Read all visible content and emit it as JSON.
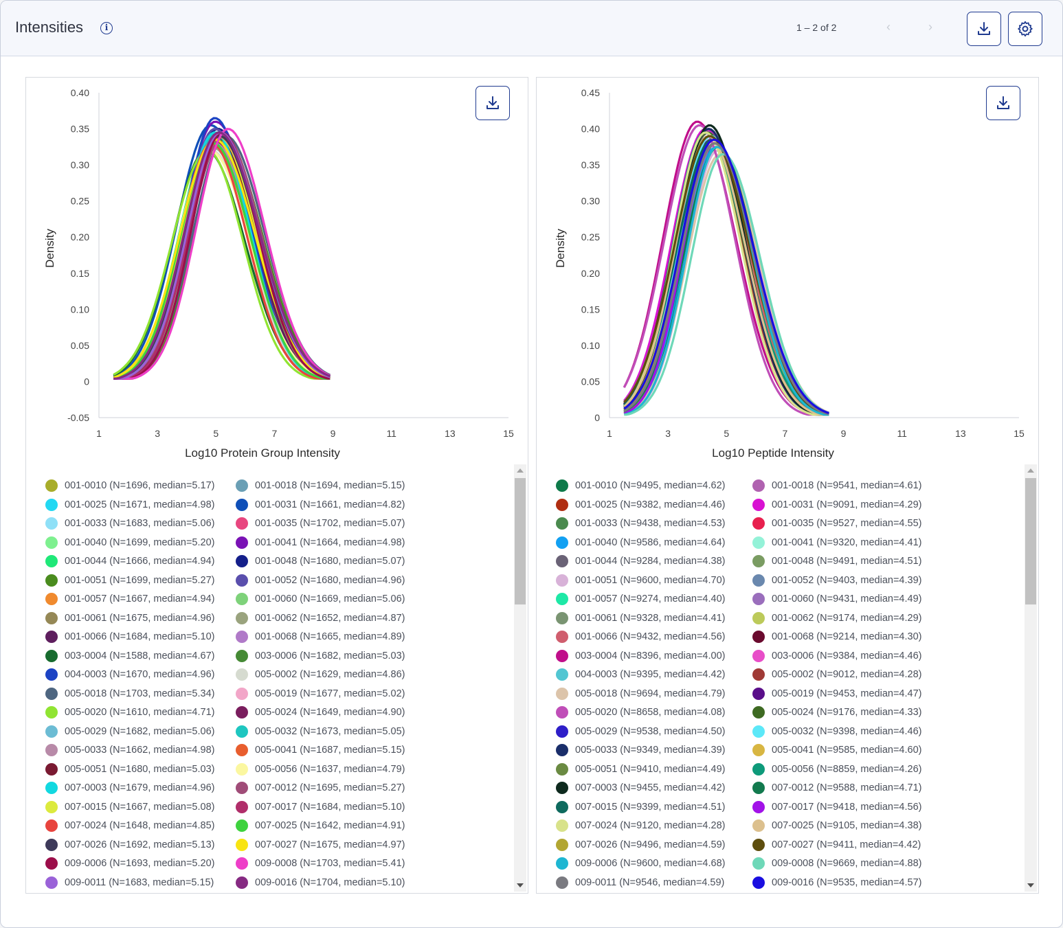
{
  "header": {
    "title": "Intensities",
    "pager": "1 – 2 of 2"
  },
  "chart_data": [
    {
      "type": "line",
      "xlabel": "Log10 Protein Group Intensity",
      "ylabel": "Density",
      "xlim": [
        1,
        15
      ],
      "ylim": [
        -0.05,
        0.4
      ],
      "xticks": [
        1,
        3,
        5,
        7,
        9,
        11,
        13,
        15
      ],
      "yticks": [
        -0.05,
        0,
        0.05,
        0.1,
        0.15,
        0.2,
        0.25,
        0.3,
        0.35,
        0.4
      ],
      "ytick_labels": [
        "-0.05",
        "0",
        "0.05",
        "0.10",
        "0.15",
        "0.20",
        "0.25",
        "0.30",
        "0.35",
        "0.40"
      ],
      "x_range": [
        1.5,
        8.9
      ],
      "series": [
        {
          "name": "001-0010 (N=1696, median=5.17)",
          "color": "#a8ad2a",
          "peak_x": 5.17,
          "peak_y": 0.34
        },
        {
          "name": "001-0018 (N=1694, median=5.15)",
          "color": "#6a9fb5",
          "peak_x": 5.15,
          "peak_y": 0.345
        },
        {
          "name": "001-0025 (N=1671, median=4.98)",
          "color": "#22d8f2",
          "peak_x": 4.98,
          "peak_y": 0.35
        },
        {
          "name": "001-0031 (N=1661, median=4.82)",
          "color": "#0f4fb8",
          "peak_x": 4.82,
          "peak_y": 0.355
        },
        {
          "name": "001-0033 (N=1683, median=5.06)",
          "color": "#8fe0f7",
          "peak_x": 5.06,
          "peak_y": 0.345
        },
        {
          "name": "001-0035 (N=1702, median=5.07)",
          "color": "#e8467f",
          "peak_x": 5.07,
          "peak_y": 0.335
        },
        {
          "name": "001-0040 (N=1699, median=5.20)",
          "color": "#7ef08f",
          "peak_x": 5.2,
          "peak_y": 0.34
        },
        {
          "name": "001-0041 (N=1664, median=4.98)",
          "color": "#7a12b5",
          "peak_x": 4.98,
          "peak_y": 0.36
        },
        {
          "name": "001-0044 (N=1666, median=4.94)",
          "color": "#1fe878",
          "peak_x": 4.94,
          "peak_y": 0.345
        },
        {
          "name": "001-0048 (N=1680, median=5.07)",
          "color": "#141f8a",
          "peak_x": 5.07,
          "peak_y": 0.35
        },
        {
          "name": "001-0051 (N=1699, median=5.27)",
          "color": "#4a8c1e",
          "peak_x": 5.27,
          "peak_y": 0.335
        },
        {
          "name": "001-0052 (N=1680, median=4.96)",
          "color": "#5a4fad",
          "peak_x": 4.96,
          "peak_y": 0.35
        },
        {
          "name": "001-0057 (N=1667, median=4.94)",
          "color": "#f08a2e",
          "peak_x": 4.94,
          "peak_y": 0.33
        },
        {
          "name": "001-0060 (N=1669, median=5.06)",
          "color": "#7ed27a",
          "peak_x": 5.06,
          "peak_y": 0.345
        },
        {
          "name": "001-0061 (N=1675, median=4.96)",
          "color": "#958856",
          "peak_x": 4.96,
          "peak_y": 0.33
        },
        {
          "name": "001-0062 (N=1652, median=4.87)",
          "color": "#9aa37e",
          "peak_x": 4.87,
          "peak_y": 0.325
        },
        {
          "name": "001-0066 (N=1684, median=5.10)",
          "color": "#5e1f5e",
          "peak_x": 5.1,
          "peak_y": 0.34
        },
        {
          "name": "001-0068 (N=1665, median=4.89)",
          "color": "#b07ac8",
          "peak_x": 4.89,
          "peak_y": 0.335
        },
        {
          "name": "003-0004 (N=1588, median=4.67)",
          "color": "#176b2e",
          "peak_x": 4.67,
          "peak_y": 0.32
        },
        {
          "name": "003-0006 (N=1682, median=5.03)",
          "color": "#458a35",
          "peak_x": 5.03,
          "peak_y": 0.34
        },
        {
          "name": "004-0003 (N=1670, median=4.96)",
          "color": "#1c43c4",
          "peak_x": 4.96,
          "peak_y": 0.365
        },
        {
          "name": "005-0002 (N=1629, median=4.86)",
          "color": "#d6dbd0",
          "peak_x": 4.86,
          "peak_y": 0.32
        },
        {
          "name": "005-0018 (N=1703, median=5.34)",
          "color": "#4e6680",
          "peak_x": 5.34,
          "peak_y": 0.34
        },
        {
          "name": "005-0019 (N=1677, median=5.02)",
          "color": "#f2a6c8",
          "peak_x": 5.02,
          "peak_y": 0.33
        },
        {
          "name": "005-0020 (N=1610, median=4.71)",
          "color": "#90e432",
          "peak_x": 4.71,
          "peak_y": 0.32
        },
        {
          "name": "005-0024 (N=1649, median=4.90)",
          "color": "#7a1e5e",
          "peak_x": 4.9,
          "peak_y": 0.335
        },
        {
          "name": "005-0029 (N=1682, median=5.06)",
          "color": "#6cbcd4",
          "peak_x": 5.06,
          "peak_y": 0.345
        },
        {
          "name": "005-0032 (N=1673, median=5.05)",
          "color": "#1ec6c0",
          "peak_x": 5.05,
          "peak_y": 0.345
        },
        {
          "name": "005-0033 (N=1662, median=4.98)",
          "color": "#b88aa8",
          "peak_x": 4.98,
          "peak_y": 0.33
        },
        {
          "name": "005-0041 (N=1687, median=5.15)",
          "color": "#e85e2e",
          "peak_x": 5.15,
          "peak_y": 0.34
        },
        {
          "name": "005-0051 (N=1680, median=5.03)",
          "color": "#7a1a32",
          "peak_x": 5.03,
          "peak_y": 0.34
        },
        {
          "name": "005-0056 (N=1637, median=4.79)",
          "color": "#fbf7a0",
          "peak_x": 4.79,
          "peak_y": 0.32
        },
        {
          "name": "007-0003 (N=1679, median=4.96)",
          "color": "#12d8e0",
          "peak_x": 4.96,
          "peak_y": 0.345
        },
        {
          "name": "007-0012 (N=1695, median=5.27)",
          "color": "#a04c78",
          "peak_x": 5.27,
          "peak_y": 0.34
        },
        {
          "name": "007-0015 (N=1667, median=5.08)",
          "color": "#dcea3e",
          "peak_x": 5.08,
          "peak_y": 0.34
        },
        {
          "name": "007-0017 (N=1684, median=5.10)",
          "color": "#b02e6a",
          "peak_x": 5.1,
          "peak_y": 0.34
        },
        {
          "name": "007-0024 (N=1648, median=4.85)",
          "color": "#e8443e",
          "peak_x": 4.85,
          "peak_y": 0.33
        },
        {
          "name": "007-0025 (N=1642, median=4.91)",
          "color": "#3ed23e",
          "peak_x": 4.91,
          "peak_y": 0.33
        },
        {
          "name": "007-0026 (N=1692, median=5.13)",
          "color": "#3e3a5a",
          "peak_x": 5.13,
          "peak_y": 0.34
        },
        {
          "name": "007-0027 (N=1675, median=4.97)",
          "color": "#f8e412",
          "peak_x": 4.97,
          "peak_y": 0.335
        },
        {
          "name": "009-0006 (N=1693, median=5.20)",
          "color": "#9c0e4a",
          "peak_x": 5.2,
          "peak_y": 0.345
        },
        {
          "name": "009-0008 (N=1703, median=5.41)",
          "color": "#ee3ec8",
          "peak_x": 5.41,
          "peak_y": 0.35
        },
        {
          "name": "009-0011 (N=1683, median=5.15)",
          "color": "#9a62d8",
          "peak_x": 5.15,
          "peak_y": 0.345
        },
        {
          "name": "009-0016 (N=1704, median=5.10)",
          "color": "#862a82",
          "peak_x": 5.1,
          "peak_y": 0.345
        }
      ]
    },
    {
      "type": "line",
      "xlabel": "Log10 Peptide Intensity",
      "ylabel": "Density",
      "xlim": [
        1,
        15
      ],
      "ylim": [
        0,
        0.45
      ],
      "xticks": [
        1,
        3,
        5,
        7,
        9,
        11,
        13,
        15
      ],
      "yticks": [
        0,
        0.05,
        0.1,
        0.15,
        0.2,
        0.25,
        0.3,
        0.35,
        0.4,
        0.45
      ],
      "ytick_labels": [
        "0",
        "0.05",
        "0.10",
        "0.15",
        "0.20",
        "0.25",
        "0.30",
        "0.35",
        "0.40",
        "0.45"
      ],
      "x_range": [
        1.5,
        8.5
      ],
      "series": [
        {
          "name": "001-0010 (N=9495, median=4.62)",
          "color": "#0e7a4a",
          "peak_x": 4.62,
          "peak_y": 0.38
        },
        {
          "name": "001-0018 (N=9541, median=4.61)",
          "color": "#b062b0",
          "peak_x": 4.61,
          "peak_y": 0.38
        },
        {
          "name": "001-0025 (N=9382, median=4.46)",
          "color": "#b02e12",
          "peak_x": 4.46,
          "peak_y": 0.39
        },
        {
          "name": "001-0031 (N=9091, median=4.29)",
          "color": "#d812d2",
          "peak_x": 4.29,
          "peak_y": 0.4
        },
        {
          "name": "001-0033 (N=9438, median=4.53)",
          "color": "#4a8a4e",
          "peak_x": 4.53,
          "peak_y": 0.385
        },
        {
          "name": "001-0035 (N=9527, median=4.55)",
          "color": "#e8204e",
          "peak_x": 4.55,
          "peak_y": 0.385
        },
        {
          "name": "001-0040 (N=9586, median=4.64)",
          "color": "#12a0f2",
          "peak_x": 4.64,
          "peak_y": 0.375
        },
        {
          "name": "001-0041 (N=9320, median=4.41)",
          "color": "#94f2d8",
          "peak_x": 4.41,
          "peak_y": 0.39
        },
        {
          "name": "001-0044 (N=9284, median=4.38)",
          "color": "#6a6276",
          "peak_x": 4.38,
          "peak_y": 0.395
        },
        {
          "name": "001-0048 (N=9491, median=4.51)",
          "color": "#7a9c62",
          "peak_x": 4.51,
          "peak_y": 0.385
        },
        {
          "name": "001-0051 (N=9600, median=4.70)",
          "color": "#d8b2d8",
          "peak_x": 4.7,
          "peak_y": 0.37
        },
        {
          "name": "001-0052 (N=9403, median=4.39)",
          "color": "#6a88ae",
          "peak_x": 4.39,
          "peak_y": 0.39
        },
        {
          "name": "001-0057 (N=9274, median=4.40)",
          "color": "#1ee8a6",
          "peak_x": 4.4,
          "peak_y": 0.39
        },
        {
          "name": "001-0060 (N=9431, median=4.49)",
          "color": "#9a6ebc",
          "peak_x": 4.49,
          "peak_y": 0.385
        },
        {
          "name": "001-0061 (N=9328, median=4.41)",
          "color": "#7a9472",
          "peak_x": 4.41,
          "peak_y": 0.39
        },
        {
          "name": "001-0062 (N=9174, median=4.29)",
          "color": "#bcca5a",
          "peak_x": 4.29,
          "peak_y": 0.395
        },
        {
          "name": "001-0066 (N=9432, median=4.56)",
          "color": "#d05e6e",
          "peak_x": 4.56,
          "peak_y": 0.385
        },
        {
          "name": "001-0068 (N=9214, median=4.30)",
          "color": "#6a0a2e",
          "peak_x": 4.3,
          "peak_y": 0.395
        },
        {
          "name": "003-0004 (N=8396, median=4.00)",
          "color": "#c00e8a",
          "peak_x": 4.0,
          "peak_y": 0.41
        },
        {
          "name": "003-0006 (N=9384, median=4.46)",
          "color": "#e84ec8",
          "peak_x": 4.46,
          "peak_y": 0.39
        },
        {
          "name": "004-0003 (N=9395, median=4.42)",
          "color": "#52c6d2",
          "peak_x": 4.42,
          "peak_y": 0.39
        },
        {
          "name": "005-0002 (N=9012, median=4.28)",
          "color": "#a03a36",
          "peak_x": 4.28,
          "peak_y": 0.395
        },
        {
          "name": "005-0018 (N=9694, median=4.79)",
          "color": "#dcc4aa",
          "peak_x": 4.79,
          "peak_y": 0.365
        },
        {
          "name": "005-0019 (N=9453, median=4.47)",
          "color": "#5a0e8a",
          "peak_x": 4.47,
          "peak_y": 0.385
        },
        {
          "name": "005-0020 (N=8658, median=4.08)",
          "color": "#c04eb8",
          "peak_x": 4.08,
          "peak_y": 0.405
        },
        {
          "name": "005-0024 (N=9176, median=4.33)",
          "color": "#3e6a22",
          "peak_x": 4.33,
          "peak_y": 0.395
        },
        {
          "name": "005-0029 (N=9538, median=4.50)",
          "color": "#2e1ec8",
          "peak_x": 4.5,
          "peak_y": 0.385
        },
        {
          "name": "005-0032 (N=9398, median=4.46)",
          "color": "#5ce8f8",
          "peak_x": 4.46,
          "peak_y": 0.39
        },
        {
          "name": "005-0033 (N=9349, median=4.39)",
          "color": "#1a2e6a",
          "peak_x": 4.39,
          "peak_y": 0.4
        },
        {
          "name": "005-0041 (N=9585, median=4.60)",
          "color": "#d8b642",
          "peak_x": 4.6,
          "peak_y": 0.38
        },
        {
          "name": "005-0051 (N=9410, median=4.49)",
          "color": "#6a8a42",
          "peak_x": 4.49,
          "peak_y": 0.385
        },
        {
          "name": "005-0056 (N=8859, median=4.26)",
          "color": "#0e9a7a",
          "peak_x": 4.26,
          "peak_y": 0.395
        },
        {
          "name": "007-0003 (N=9455, median=4.42)",
          "color": "#0e2a1e",
          "peak_x": 4.42,
          "peak_y": 0.405
        },
        {
          "name": "007-0012 (N=9588, median=4.71)",
          "color": "#127a4e",
          "peak_x": 4.71,
          "peak_y": 0.375
        },
        {
          "name": "007-0015 (N=9399, median=4.51)",
          "color": "#0e6a5e",
          "peak_x": 4.51,
          "peak_y": 0.385
        },
        {
          "name": "007-0017 (N=9418, median=4.56)",
          "color": "#a212e8",
          "peak_x": 4.56,
          "peak_y": 0.385
        },
        {
          "name": "007-0024 (N=9120, median=4.28)",
          "color": "#d8e28a",
          "peak_x": 4.28,
          "peak_y": 0.395
        },
        {
          "name": "007-0025 (N=9105, median=4.38)",
          "color": "#dcc08e",
          "peak_x": 4.38,
          "peak_y": 0.39
        },
        {
          "name": "007-0026 (N=9496, median=4.59)",
          "color": "#b2a632",
          "peak_x": 4.59,
          "peak_y": 0.38
        },
        {
          "name": "007-0027 (N=9411, median=4.42)",
          "color": "#5e4e0e",
          "peak_x": 4.42,
          "peak_y": 0.39
        },
        {
          "name": "009-0006 (N=9600, median=4.68)",
          "color": "#1eb6d2",
          "peak_x": 4.68,
          "peak_y": 0.375
        },
        {
          "name": "009-0008 (N=9669, median=4.88)",
          "color": "#6ed8b8",
          "peak_x": 4.88,
          "peak_y": 0.365
        },
        {
          "name": "009-0011 (N=9546, median=4.59)",
          "color": "#7a7a80",
          "peak_x": 4.59,
          "peak_y": 0.38
        },
        {
          "name": "009-0016 (N=9535, median=4.57)",
          "color": "#1a0ee0",
          "peak_x": 4.57,
          "peak_y": 0.385
        }
      ]
    }
  ]
}
